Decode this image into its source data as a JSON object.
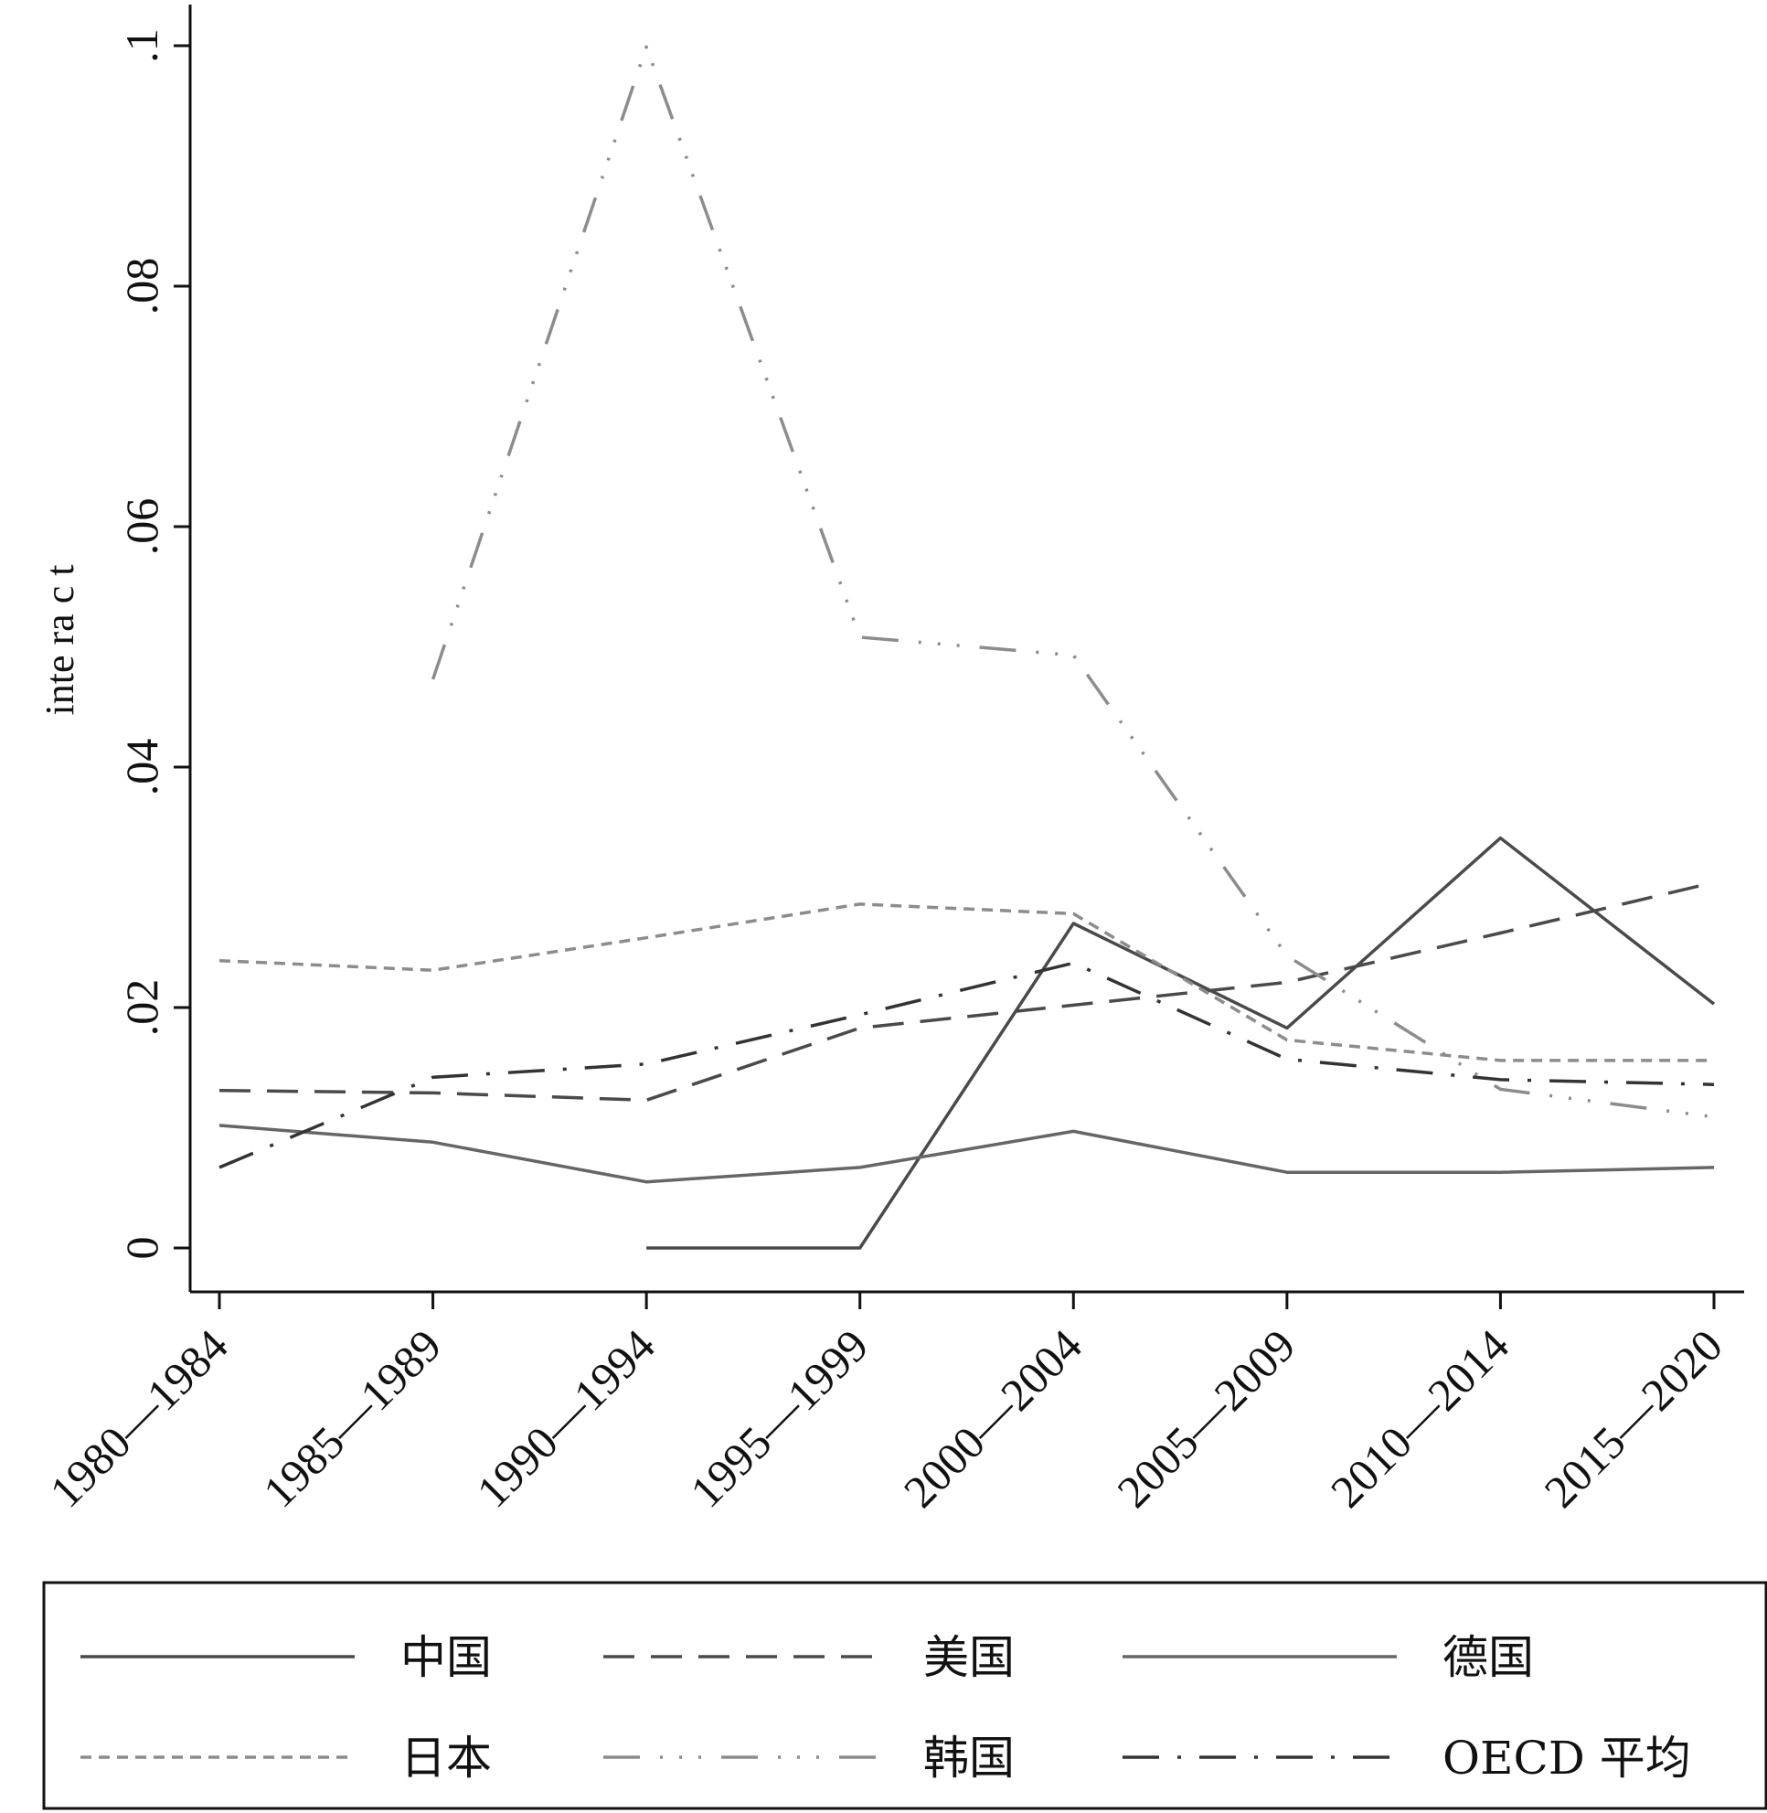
{
  "chart_data": {
    "type": "line",
    "title": "",
    "xlabel": "",
    "ylabel": "inte ra c t",
    "categories": [
      "1980—1984",
      "1985—1989",
      "1990—1994",
      "1995—1999",
      "2000—2004",
      "2005—2009",
      "2010—2014",
      "2015—2020"
    ],
    "ylim": [
      0,
      0.1
    ],
    "yticks": [
      0,
      0.02,
      0.04,
      0.06,
      0.08,
      0.1
    ],
    "ytick_labels": [
      "0",
      ".02",
      ".04",
      ".06",
      ".08",
      ".1"
    ],
    "grid": false,
    "legend_position": "bottom",
    "series": [
      {
        "name": "中国",
        "color": "#4a4a4a",
        "dash": "solid",
        "values": [
          null,
          null,
          0.0,
          0.0,
          0.027,
          0.0183,
          0.0341,
          0.0203
        ]
      },
      {
        "name": "美国",
        "color": "#4a4a4a",
        "dash": "dash",
        "values": [
          0.0131,
          0.0129,
          0.0123,
          0.0183,
          0.0202,
          0.0221,
          0.0262,
          0.0304
        ]
      },
      {
        "name": "德国",
        "color": "#666666",
        "dash": "solid",
        "values": [
          0.0102,
          0.0088,
          0.0055,
          0.0067,
          0.0097,
          0.0063,
          0.0063,
          0.0067
        ]
      },
      {
        "name": "日本",
        "color": "#8c8c8c",
        "dash": "short",
        "values": [
          0.0239,
          0.0231,
          0.0258,
          0.0286,
          0.0278,
          0.0173,
          0.0156,
          0.0156
        ]
      },
      {
        "name": "韩国",
        "color": "#8c8c8c",
        "dash": "dashdotdot",
        "values": [
          null,
          0.0473,
          0.0999,
          0.0508,
          0.0493,
          0.0243,
          0.0132,
          0.0109
        ]
      },
      {
        "name": "OECD 平均",
        "color": "#333333",
        "dash": "dashdot",
        "values": [
          0.0067,
          0.0142,
          0.0153,
          0.0194,
          0.0237,
          0.0157,
          0.014,
          0.0136
        ]
      }
    ]
  }
}
